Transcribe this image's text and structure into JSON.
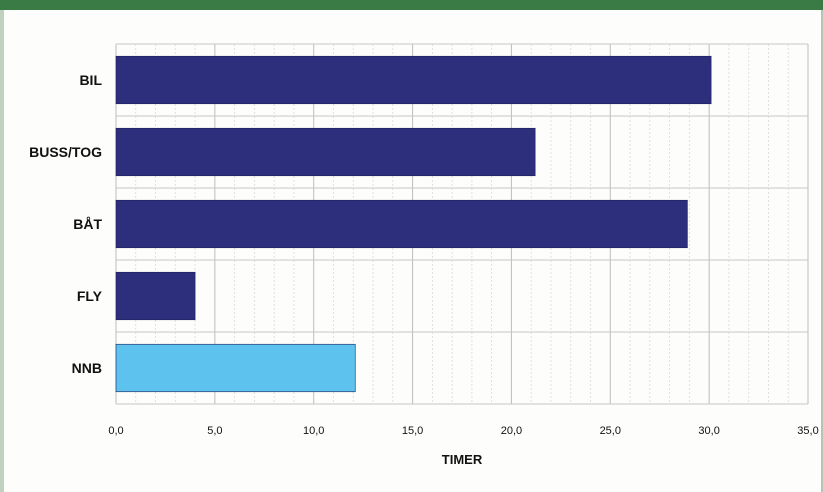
{
  "chart_data": {
    "type": "bar",
    "orientation": "horizontal",
    "categories": [
      "BIL",
      "BUSS/TOG",
      "BÅT",
      "FLY",
      "NNB"
    ],
    "values": [
      30.1,
      21.2,
      28.9,
      4.0,
      12.1
    ],
    "bar_colors": [
      "#2d2e7c",
      "#2d2e7c",
      "#2d2e7c",
      "#2d2e7c",
      "#5ec2ee"
    ],
    "xlabel": "TIMER",
    "xlim": [
      0,
      35
    ],
    "x_ticks": [
      0,
      5,
      10,
      15,
      20,
      25,
      30,
      35
    ],
    "x_tick_labels": [
      "0,0",
      "5,0",
      "10,0",
      "15,0",
      "20,0",
      "25,0",
      "30,0",
      "35,0"
    ],
    "grid": true
  },
  "colors": {
    "header_band": "#3a7a44",
    "bar_primary": "#2d2e7c",
    "bar_highlight": "#5ec2ee",
    "grid": "#c8c8c8"
  }
}
